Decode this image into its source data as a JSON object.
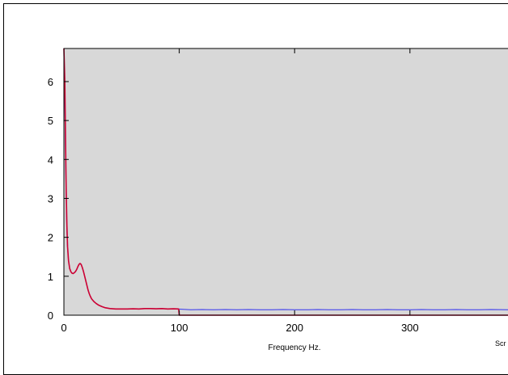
{
  "chart_data": {
    "type": "line",
    "title": "",
    "xlabel": "Frequency Hz.",
    "ylabel": "",
    "xlim": [
      0,
      385
    ],
    "ylim": [
      0,
      6.85
    ],
    "xticks": [
      0,
      100,
      200,
      300
    ],
    "yticks": [
      0,
      1,
      2,
      3,
      4,
      5,
      6
    ],
    "grid": false,
    "plot_background": "#d8d8d8",
    "clipped_label": "Scr",
    "series": [
      {
        "color": "#3333ee",
        "points": [
          [
            0,
            6.5
          ],
          [
            0.6,
            6.0
          ],
          [
            1.2,
            4.6
          ],
          [
            1.8,
            3.3
          ],
          [
            2.4,
            2.4
          ],
          [
            3,
            1.8
          ],
          [
            4,
            1.4
          ],
          [
            5,
            1.2
          ],
          [
            6,
            1.12
          ],
          [
            7,
            1.08
          ],
          [
            8,
            1.07
          ],
          [
            9,
            1.09
          ],
          [
            10,
            1.12
          ],
          [
            11,
            1.17
          ],
          [
            12,
            1.24
          ],
          [
            13,
            1.3
          ],
          [
            14,
            1.33
          ],
          [
            15,
            1.3
          ],
          [
            16,
            1.22
          ],
          [
            17,
            1.12
          ],
          [
            18,
            1.0
          ],
          [
            19,
            0.88
          ],
          [
            20,
            0.76
          ],
          [
            21,
            0.64
          ],
          [
            22,
            0.55
          ],
          [
            23,
            0.48
          ],
          [
            24,
            0.42
          ],
          [
            26,
            0.35
          ],
          [
            28,
            0.3
          ],
          [
            30,
            0.26
          ],
          [
            33,
            0.22
          ],
          [
            36,
            0.19
          ],
          [
            40,
            0.17
          ],
          [
            45,
            0.16
          ],
          [
            50,
            0.16
          ],
          [
            55,
            0.16
          ],
          [
            60,
            0.165
          ],
          [
            65,
            0.16
          ],
          [
            70,
            0.17
          ],
          [
            75,
            0.17
          ],
          [
            80,
            0.165
          ],
          [
            85,
            0.17
          ],
          [
            90,
            0.16
          ],
          [
            95,
            0.165
          ],
          [
            100,
            0.155
          ],
          [
            110,
            0.14
          ],
          [
            120,
            0.145
          ],
          [
            130,
            0.14
          ],
          [
            140,
            0.145
          ],
          [
            150,
            0.14
          ],
          [
            160,
            0.145
          ],
          [
            170,
            0.14
          ],
          [
            180,
            0.14
          ],
          [
            190,
            0.145
          ],
          [
            200,
            0.14
          ],
          [
            210,
            0.14
          ],
          [
            220,
            0.145
          ],
          [
            230,
            0.14
          ],
          [
            240,
            0.14
          ],
          [
            250,
            0.145
          ],
          [
            260,
            0.14
          ],
          [
            270,
            0.14
          ],
          [
            280,
            0.145
          ],
          [
            290,
            0.14
          ],
          [
            300,
            0.14
          ],
          [
            310,
            0.145
          ],
          [
            320,
            0.14
          ],
          [
            330,
            0.14
          ],
          [
            340,
            0.145
          ],
          [
            350,
            0.14
          ],
          [
            360,
            0.14
          ],
          [
            370,
            0.145
          ],
          [
            385,
            0.14
          ]
        ]
      },
      {
        "color": "#cc0033",
        "points": [
          [
            0,
            6.85
          ],
          [
            0.8,
            6.0
          ],
          [
            1.4,
            4.5
          ],
          [
            2,
            3.2
          ],
          [
            2.6,
            2.3
          ],
          [
            3.2,
            1.75
          ],
          [
            4,
            1.4
          ],
          [
            5,
            1.2
          ],
          [
            6,
            1.12
          ],
          [
            7,
            1.08
          ],
          [
            8,
            1.07
          ],
          [
            9,
            1.09
          ],
          [
            10,
            1.12
          ],
          [
            11,
            1.17
          ],
          [
            12,
            1.24
          ],
          [
            13,
            1.3
          ],
          [
            14,
            1.33
          ],
          [
            15,
            1.3
          ],
          [
            16,
            1.22
          ],
          [
            17,
            1.12
          ],
          [
            18,
            1.0
          ],
          [
            19,
            0.88
          ],
          [
            20,
            0.76
          ],
          [
            21,
            0.64
          ],
          [
            22,
            0.55
          ],
          [
            23,
            0.48
          ],
          [
            24,
            0.42
          ],
          [
            26,
            0.35
          ],
          [
            28,
            0.3
          ],
          [
            30,
            0.26
          ],
          [
            33,
            0.22
          ],
          [
            36,
            0.19
          ],
          [
            40,
            0.17
          ],
          [
            45,
            0.16
          ],
          [
            50,
            0.16
          ],
          [
            55,
            0.16
          ],
          [
            60,
            0.165
          ],
          [
            65,
            0.16
          ],
          [
            70,
            0.17
          ],
          [
            75,
            0.17
          ],
          [
            80,
            0.165
          ],
          [
            85,
            0.17
          ],
          [
            90,
            0.16
          ],
          [
            95,
            0.165
          ],
          [
            99.5,
            0.16
          ],
          [
            100,
            0.0
          ],
          [
            385,
            0.0
          ]
        ]
      }
    ]
  }
}
